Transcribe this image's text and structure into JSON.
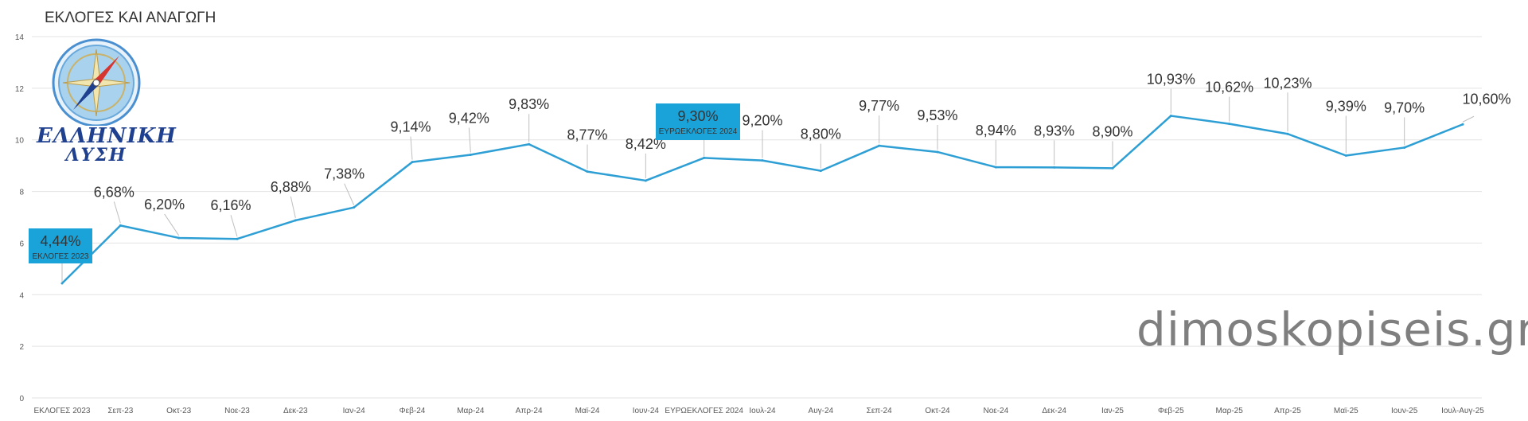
{
  "chart_data": {
    "type": "line",
    "title": "ΕΚΛΟΓΕΣ ΚΑΙ ΑΝΑΓΩΓΗ",
    "categories": [
      "ΕΚΛΟΓΕΣ 2023",
      "Σεπ-23",
      "Οκτ-23",
      "Νοε-23",
      "Δεκ-23",
      "Ιαν-24",
      "Φεβ-24",
      "Μαρ-24",
      "Απρ-24",
      "Μαϊ-24",
      "Ιουν-24",
      "ΕΥΡΩΕΚΛΟΓΕΣ 2024",
      "Ιουλ-24",
      "Αυγ-24",
      "Σεπ-24",
      "Οκτ-24",
      "Νοε-24",
      "Δεκ-24",
      "Ιαν-25",
      "Φεβ-25",
      "Μαρ-25",
      "Απρ-25",
      "Μαϊ-25",
      "Ιουν-25",
      "Ιουλ-Αυγ-25"
    ],
    "values": [
      4.44,
      6.68,
      6.2,
      6.16,
      6.88,
      7.38,
      9.14,
      9.42,
      9.83,
      8.77,
      8.42,
      9.3,
      9.2,
      8.8,
      9.77,
      9.53,
      8.94,
      8.93,
      8.9,
      10.93,
      10.62,
      10.23,
      9.39,
      9.7,
      10.6
    ],
    "data_labels": [
      "4,44%",
      "6,68%",
      "6,20%",
      "6,16%",
      "6,88%",
      "7,38%",
      "9,14%",
      "9,42%",
      "9,83%",
      "8,77%",
      "8,42%",
      "9,30%",
      "9,20%",
      "8,80%",
      "9,77%",
      "9,53%",
      "8,94%",
      "8,93%",
      "8,90%",
      "10,93%",
      "10,62%",
      "10,23%",
      "9,39%",
      "9,70%",
      "10,60%"
    ],
    "ylim": [
      0,
      14
    ],
    "yticks": [
      0,
      2,
      4,
      6,
      8,
      10,
      12,
      14
    ],
    "grid": true,
    "line_color": "#2e9fd4",
    "callouts": [
      {
        "index": 0,
        "label": "4,44%",
        "sub": "ΕΚΛΟΓΕΣ 2023"
      },
      {
        "index": 11,
        "label": "9,30%",
        "sub": "ΕΥΡΩΕΚΛΟΓΕΣ 2024"
      }
    ],
    "callout_color": "#1aa3d9"
  },
  "logo": {
    "line1": "ΕΛΛΗΝΙΚΗ",
    "line2": "ΛΥΣΗ",
    "icon": "compass-logo-icon"
  },
  "watermark": "dimoskopiseis.gr"
}
